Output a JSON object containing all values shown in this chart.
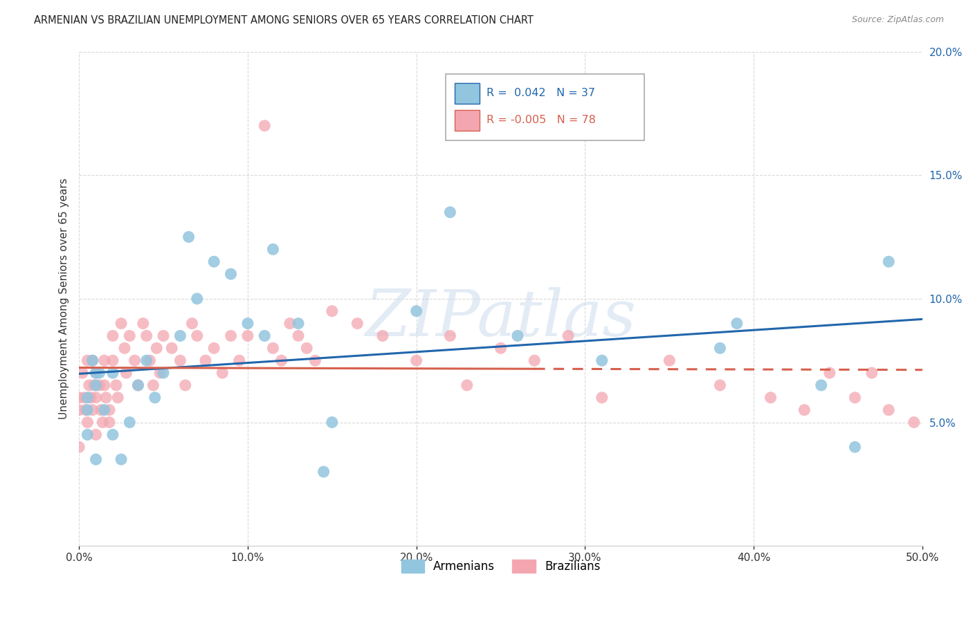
{
  "title": "ARMENIAN VS BRAZILIAN UNEMPLOYMENT AMONG SENIORS OVER 65 YEARS CORRELATION CHART",
  "source": "Source: ZipAtlas.com",
  "ylabel": "Unemployment Among Seniors over 65 years",
  "xlim": [
    0,
    0.5
  ],
  "ylim": [
    0,
    0.2
  ],
  "xticks": [
    0.0,
    0.1,
    0.2,
    0.3,
    0.4,
    0.5
  ],
  "yticks": [
    0.0,
    0.05,
    0.1,
    0.15,
    0.2
  ],
  "xticklabels": [
    "0.0%",
    "10.0%",
    "20.0%",
    "30.0%",
    "40.0%",
    "50.0%"
  ],
  "yticklabels": [
    "",
    "5.0%",
    "10.0%",
    "15.0%",
    "20.0%"
  ],
  "legend_armenians": "Armenians",
  "legend_brazilians": "Brazilians",
  "R_armenians": "0.042",
  "N_armenians": "37",
  "R_brazilians": "-0.005",
  "N_brazilians": "78",
  "armenian_color": "#92c5de",
  "brazilian_color": "#f4a6b0",
  "armenian_line_color": "#2166ac",
  "brazilian_line_color": "#d6604d",
  "watermark": "ZIPatlas",
  "armenians_x": [
    0.005,
    0.005,
    0.005,
    0.008,
    0.01,
    0.01,
    0.01,
    0.012,
    0.015,
    0.02,
    0.02,
    0.025,
    0.03,
    0.035,
    0.04,
    0.045,
    0.05,
    0.06,
    0.065,
    0.07,
    0.08,
    0.09,
    0.1,
    0.11,
    0.115,
    0.13,
    0.145,
    0.15,
    0.2,
    0.22,
    0.26,
    0.31,
    0.38,
    0.39,
    0.44,
    0.46,
    0.48
  ],
  "armenians_y": [
    0.06,
    0.055,
    0.045,
    0.075,
    0.07,
    0.065,
    0.035,
    0.07,
    0.055,
    0.045,
    0.07,
    0.035,
    0.05,
    0.065,
    0.075,
    0.06,
    0.07,
    0.085,
    0.125,
    0.1,
    0.115,
    0.11,
    0.09,
    0.085,
    0.12,
    0.09,
    0.03,
    0.05,
    0.095,
    0.135,
    0.085,
    0.075,
    0.08,
    0.09,
    0.065,
    0.04,
    0.115
  ],
  "brazilians_x": [
    0.0,
    0.0,
    0.0,
    0.002,
    0.003,
    0.004,
    0.005,
    0.005,
    0.006,
    0.007,
    0.008,
    0.008,
    0.009,
    0.01,
    0.01,
    0.01,
    0.012,
    0.013,
    0.014,
    0.015,
    0.015,
    0.016,
    0.018,
    0.018,
    0.02,
    0.02,
    0.022,
    0.023,
    0.025,
    0.027,
    0.028,
    0.03,
    0.033,
    0.035,
    0.038,
    0.04,
    0.042,
    0.044,
    0.046,
    0.048,
    0.05,
    0.055,
    0.06,
    0.063,
    0.067,
    0.07,
    0.075,
    0.08,
    0.085,
    0.09,
    0.095,
    0.1,
    0.11,
    0.115,
    0.12,
    0.125,
    0.13,
    0.135,
    0.14,
    0.15,
    0.165,
    0.18,
    0.2,
    0.22,
    0.23,
    0.25,
    0.27,
    0.29,
    0.31,
    0.35,
    0.38,
    0.41,
    0.43,
    0.445,
    0.46,
    0.47,
    0.48,
    0.495
  ],
  "brazilians_y": [
    0.06,
    0.055,
    0.04,
    0.07,
    0.06,
    0.055,
    0.05,
    0.075,
    0.065,
    0.06,
    0.055,
    0.075,
    0.065,
    0.045,
    0.06,
    0.07,
    0.065,
    0.055,
    0.05,
    0.075,
    0.065,
    0.06,
    0.055,
    0.05,
    0.085,
    0.075,
    0.065,
    0.06,
    0.09,
    0.08,
    0.07,
    0.085,
    0.075,
    0.065,
    0.09,
    0.085,
    0.075,
    0.065,
    0.08,
    0.07,
    0.085,
    0.08,
    0.075,
    0.065,
    0.09,
    0.085,
    0.075,
    0.08,
    0.07,
    0.085,
    0.075,
    0.085,
    0.17,
    0.08,
    0.075,
    0.09,
    0.085,
    0.08,
    0.075,
    0.095,
    0.09,
    0.085,
    0.075,
    0.085,
    0.065,
    0.08,
    0.075,
    0.085,
    0.06,
    0.075,
    0.065,
    0.06,
    0.055,
    0.07,
    0.06,
    0.07,
    0.055,
    0.05
  ],
  "background_color": "#ffffff",
  "grid_color": "#d0d0d0"
}
